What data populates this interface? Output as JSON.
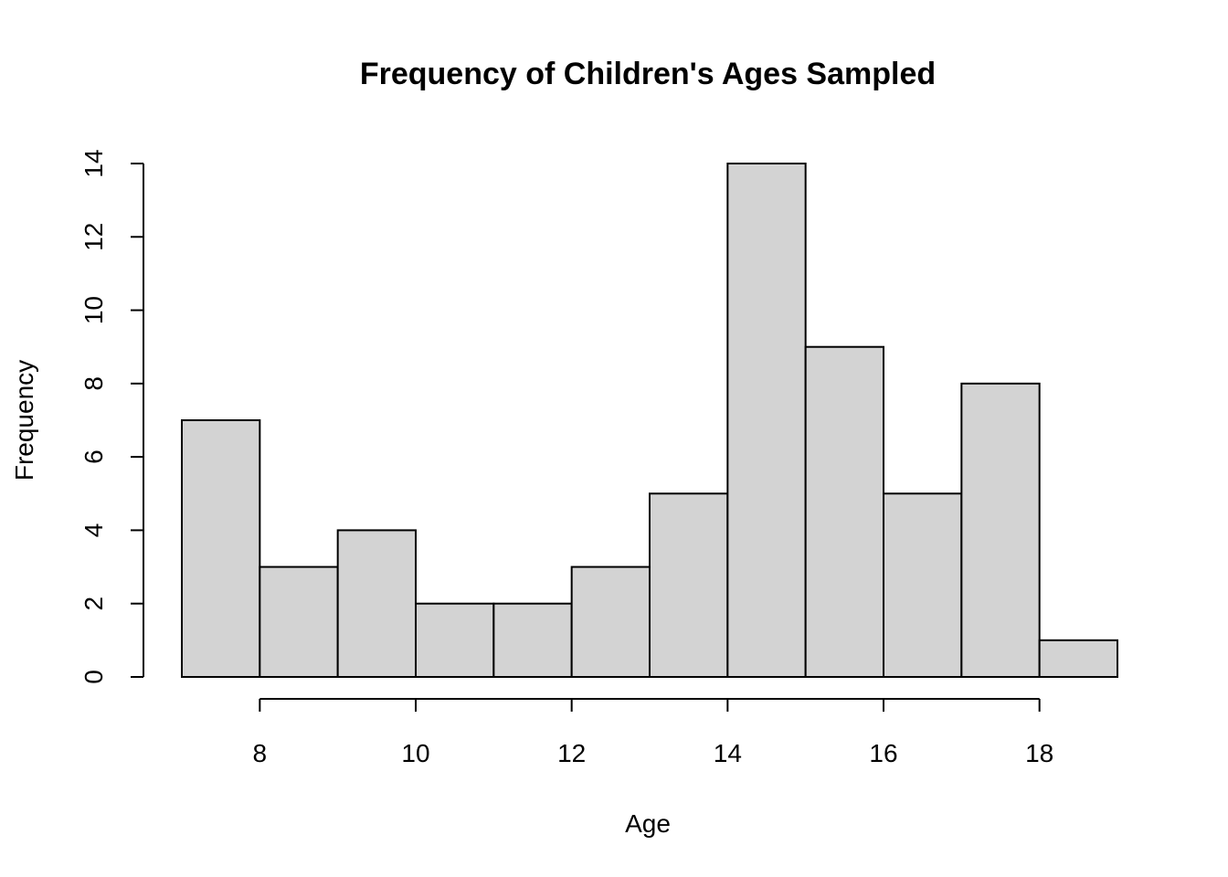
{
  "chart_data": {
    "type": "bar",
    "title": "Frequency of Children's Ages Sampled",
    "xlabel": "Age",
    "ylabel": "Frequency",
    "bins": [
      {
        "start": 7,
        "end": 8,
        "count": 7
      },
      {
        "start": 8,
        "end": 9,
        "count": 3
      },
      {
        "start": 9,
        "end": 10,
        "count": 4
      },
      {
        "start": 10,
        "end": 11,
        "count": 2
      },
      {
        "start": 11,
        "end": 12,
        "count": 2
      },
      {
        "start": 12,
        "end": 13,
        "count": 3
      },
      {
        "start": 13,
        "end": 14,
        "count": 5
      },
      {
        "start": 14,
        "end": 15,
        "count": 14
      },
      {
        "start": 15,
        "end": 16,
        "count": 9
      },
      {
        "start": 16,
        "end": 17,
        "count": 5
      },
      {
        "start": 17,
        "end": 18,
        "count": 8
      },
      {
        "start": 18,
        "end": 19,
        "count": 1
      }
    ],
    "xlim": [
      7,
      19
    ],
    "ylim": [
      0,
      14
    ],
    "x_ticks": [
      "8",
      "10",
      "12",
      "14",
      "16",
      "18"
    ],
    "y_ticks": [
      "0",
      "2",
      "4",
      "6",
      "8",
      "10",
      "12",
      "14"
    ],
    "grid": false,
    "bar_color": "#d3d3d3",
    "border_color": "#000000"
  }
}
